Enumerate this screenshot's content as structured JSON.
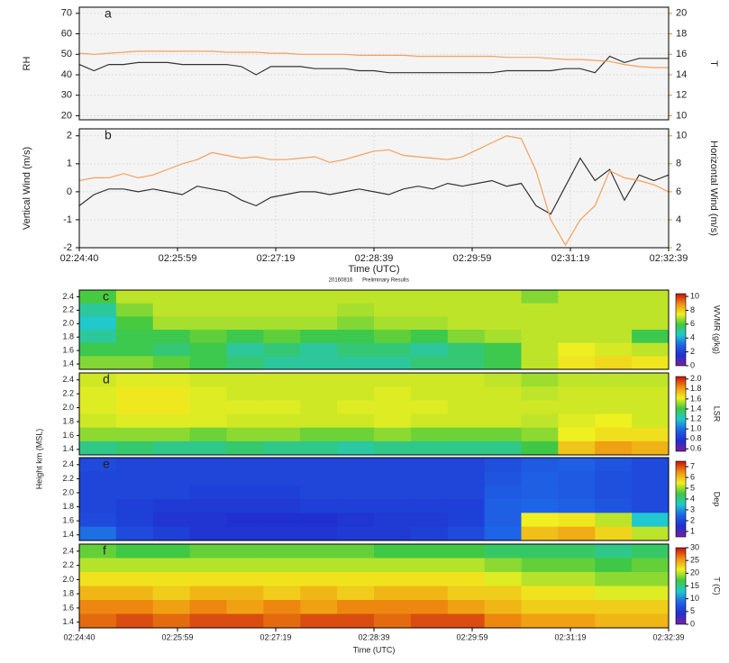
{
  "chart_data": [
    {
      "type": "line",
      "label": "a",
      "ylabel": "RH",
      "y2label": "T",
      "ylim": [
        18,
        73
      ],
      "yticks": [
        20,
        30,
        40,
        50,
        60,
        70
      ],
      "y2lim": [
        9.6,
        20.6
      ],
      "y2ticks": [
        10,
        12,
        14,
        16,
        18,
        20
      ],
      "y2color": "#f08c28",
      "series": [
        {
          "color": "#333333",
          "values": [
            45,
            42,
            45,
            45,
            46,
            46,
            46,
            45,
            45,
            45,
            45,
            44,
            40,
            44,
            44,
            44,
            43,
            43,
            43,
            42,
            42,
            41,
            41,
            41,
            41,
            41,
            41,
            41,
            41,
            42,
            42,
            42,
            42,
            43,
            43,
            41,
            49,
            46,
            48,
            48,
            48
          ]
        },
        {
          "color": "#f4a05a",
          "axis": "y2",
          "values": [
            16.1,
            16.0,
            16.1,
            16.2,
            16.3,
            16.3,
            16.3,
            16.3,
            16.3,
            16.3,
            16.2,
            16.2,
            16.2,
            16.1,
            16.1,
            16.0,
            16.0,
            16.0,
            16.0,
            15.9,
            15.9,
            15.9,
            15.9,
            15.8,
            15.8,
            15.8,
            15.8,
            15.8,
            15.8,
            15.7,
            15.7,
            15.7,
            15.6,
            15.5,
            15.5,
            15.4,
            15.3,
            15.0,
            14.8,
            14.7,
            14.7
          ]
        }
      ]
    },
    {
      "type": "line",
      "label": "b",
      "ylabel": "Vertical Wind (m/s)",
      "y2label": "Horizontal Wind (m/s)",
      "ylim": [
        -2,
        2.25
      ],
      "yticks": [
        -2,
        -1,
        0,
        1,
        2
      ],
      "y2lim": [
        2,
        10.5
      ],
      "y2ticks": [
        2,
        4,
        6,
        8,
        10
      ],
      "y2color": "#f08c28",
      "xticks": [
        "02:24:40",
        "02:25:59",
        "02:27:19",
        "02:28:39",
        "02:29:59",
        "02:31:19",
        "02:32:39"
      ],
      "xlabel": "Time (UTC)",
      "annotations": [
        "20160816",
        "Preliminary Results"
      ],
      "series": [
        {
          "color": "#333333",
          "values": [
            -0.5,
            -0.1,
            0.1,
            0.1,
            0.0,
            0.1,
            0.0,
            -0.1,
            0.2,
            0.1,
            0.0,
            -0.3,
            -0.5,
            -0.2,
            -0.1,
            0.0,
            0.0,
            -0.1,
            0.0,
            0.1,
            0.0,
            -0.1,
            0.1,
            0.2,
            0.1,
            0.3,
            0.2,
            0.3,
            0.4,
            0.2,
            0.3,
            -0.5,
            -0.8,
            0.2,
            1.2,
            0.4,
            0.8,
            -0.3,
            0.6,
            0.4,
            0.6
          ]
        },
        {
          "color": "#f4a05a",
          "axis": "y2",
          "values": [
            6.8,
            7.0,
            7.0,
            7.3,
            7.0,
            7.2,
            7.6,
            8.0,
            8.3,
            8.8,
            8.6,
            8.4,
            8.5,
            8.3,
            8.3,
            8.4,
            8.5,
            8.1,
            8.3,
            8.6,
            8.9,
            9.0,
            8.6,
            8.5,
            8.4,
            8.3,
            8.5,
            9.0,
            9.5,
            10.0,
            9.8,
            7.5,
            4.0,
            2.2,
            4.0,
            5.0,
            7.5,
            7.0,
            6.8,
            6.5,
            6.0
          ]
        }
      ]
    },
    {
      "type": "heatmap",
      "label": "c",
      "ylim": [
        1.32,
        2.5
      ],
      "yticks": [
        1.4,
        1.6,
        1.8,
        {
          "value": 2,
          "label": "2.0"
        },
        2.2,
        2.4
      ],
      "clim": [
        0,
        10.4
      ],
      "cticks": [
        0,
        2,
        4,
        6,
        8,
        10
      ],
      "clabel": "WVMR (g/kg)",
      "colormap": [
        "#7a1fa0",
        "#2030d0",
        "#1e64e6",
        "#20c8d0",
        "#40c840",
        "#f0f020",
        "#f09010",
        "#c81010"
      ],
      "z": [
        [
          6,
          7,
          7,
          7,
          7,
          7,
          7,
          7,
          7,
          7,
          7,
          7,
          6.5,
          7,
          7,
          7
        ],
        [
          5,
          6.5,
          7,
          7,
          7,
          7,
          7,
          6.8,
          7,
          7,
          7,
          7,
          7,
          7,
          7,
          7
        ],
        [
          4.5,
          6,
          6.8,
          6.8,
          6.8,
          6.8,
          6.8,
          6.5,
          6.8,
          6.8,
          7,
          7,
          7,
          7,
          7,
          7
        ],
        [
          5,
          5.8,
          5.8,
          6.2,
          5.8,
          6.2,
          5.8,
          5.8,
          6.2,
          5.8,
          6.5,
          6.8,
          7,
          7,
          7,
          5.8
        ],
        [
          5.8,
          5.8,
          5.4,
          5.8,
          5,
          5.4,
          5,
          5.4,
          5.4,
          5,
          5.4,
          5.8,
          7,
          7.4,
          7.2,
          7
        ],
        [
          6.5,
          6.5,
          6.2,
          5.8,
          5.4,
          5,
          5,
          5,
          5,
          5.4,
          5.4,
          5.8,
          7,
          7.6,
          7.8,
          7.6
        ]
      ]
    },
    {
      "type": "heatmap",
      "label": "d",
      "ylim": [
        1.32,
        2.5
      ],
      "yticks": [
        1.4,
        1.6,
        1.8,
        {
          "value": 2,
          "label": "2.0"
        },
        2.2,
        2.4
      ],
      "clim": [
        0.55,
        2.05
      ],
      "cticks": [
        0.6,
        0.8,
        {
          "value": 1,
          "label": "1.0"
        },
        1.2,
        1.4,
        1.6,
        1.8,
        {
          "value": 2,
          "label": "2.0"
        }
      ],
      "clabel": "LSR",
      "colormap": [
        "#7a1fa0",
        "#2030d0",
        "#1e64e6",
        "#20c8d0",
        "#40c840",
        "#f0f020",
        "#f09010",
        "#c81010"
      ],
      "z": [
        [
          1.58,
          1.6,
          1.6,
          1.58,
          1.58,
          1.58,
          1.58,
          1.58,
          1.58,
          1.58,
          1.58,
          1.56,
          1.52,
          1.56,
          1.56,
          1.56
        ],
        [
          1.6,
          1.64,
          1.64,
          1.6,
          1.58,
          1.58,
          1.58,
          1.58,
          1.6,
          1.58,
          1.58,
          1.58,
          1.56,
          1.58,
          1.58,
          1.58
        ],
        [
          1.6,
          1.64,
          1.64,
          1.6,
          1.6,
          1.6,
          1.58,
          1.6,
          1.6,
          1.6,
          1.58,
          1.58,
          1.58,
          1.58,
          1.58,
          1.58
        ],
        [
          1.58,
          1.6,
          1.6,
          1.6,
          1.58,
          1.58,
          1.58,
          1.58,
          1.6,
          1.58,
          1.58,
          1.58,
          1.56,
          1.6,
          1.62,
          1.58
        ],
        [
          1.5,
          1.5,
          1.5,
          1.46,
          1.5,
          1.5,
          1.46,
          1.46,
          1.5,
          1.46,
          1.46,
          1.46,
          1.5,
          1.62,
          1.66,
          1.66
        ],
        [
          1.3,
          1.34,
          1.3,
          1.3,
          1.34,
          1.3,
          1.3,
          1.26,
          1.3,
          1.3,
          1.3,
          1.3,
          1.4,
          1.72,
          1.8,
          1.76
        ]
      ]
    },
    {
      "type": "heatmap",
      "label": "e",
      "ylabel": "Height km (MSL)",
      "ylim": [
        1.32,
        2.5
      ],
      "yticks": [
        1.4,
        1.6,
        1.8,
        {
          "value": 2,
          "label": "2.0"
        },
        2.2,
        2.4
      ],
      "clim": [
        0.5,
        7.5
      ],
      "cticks": [
        1,
        2,
        3,
        4,
        5,
        6,
        7
      ],
      "clabel": "Dep",
      "colormap": [
        "#7a1fa0",
        "#2030d0",
        "#1e64e6",
        "#20c8d0",
        "#40c840",
        "#f0f020",
        "#f09010",
        "#c81010"
      ],
      "z": [
        [
          2,
          1.9,
          1.9,
          1.9,
          1.9,
          1.9,
          1.9,
          1.9,
          1.9,
          1.9,
          1.9,
          2.1,
          2.3,
          2.4,
          2.2,
          2
        ],
        [
          1.9,
          1.9,
          1.9,
          1.9,
          1.9,
          1.9,
          1.9,
          1.9,
          1.9,
          1.9,
          1.9,
          2.2,
          2.4,
          2.3,
          2.1,
          2
        ],
        [
          1.9,
          1.9,
          1.9,
          1.8,
          1.8,
          1.8,
          1.9,
          1.9,
          1.9,
          1.9,
          1.9,
          2.3,
          2.4,
          2.3,
          2.1,
          2
        ],
        [
          1.9,
          1.8,
          1.7,
          1.7,
          1.7,
          1.7,
          1.8,
          1.8,
          1.8,
          1.8,
          1.8,
          2.4,
          2.5,
          2.4,
          2.2,
          2
        ],
        [
          2,
          1.8,
          1.6,
          1.6,
          1.5,
          1.5,
          1.5,
          1.6,
          1.7,
          1.7,
          1.8,
          2.4,
          5.5,
          5.6,
          5.2,
          3.5
        ],
        [
          2.6,
          2,
          1.8,
          1.6,
          1.6,
          1.6,
          1.6,
          1.7,
          1.7,
          1.8,
          2,
          2.5,
          6,
          6.2,
          5.8,
          5.2
        ]
      ]
    },
    {
      "type": "heatmap",
      "label": "f",
      "ylim": [
        1.32,
        2.5
      ],
      "yticks": [
        1.4,
        1.6,
        1.8,
        {
          "value": 2,
          "label": "2.0"
        },
        2.2,
        2.4
      ],
      "clim": [
        0,
        30
      ],
      "cticks": [
        0,
        5,
        10,
        15,
        20,
        25,
        30
      ],
      "clabel": "T (C)",
      "colormap": [
        "#7a1fa0",
        "#2030d0",
        "#1e64e6",
        "#20c8d0",
        "#40c840",
        "#f0f020",
        "#f09010",
        "#c81010"
      ],
      "xticks": [
        "02:24:40",
        "02:25:59",
        "02:27:19",
        "02:28:39",
        "02:29:59",
        "02:31:19",
        "02:32:39"
      ],
      "xlabel": "Time (UTC)",
      "z": [
        [
          18,
          17,
          17,
          18,
          18,
          18,
          18,
          18,
          17,
          17,
          17,
          16,
          16,
          16,
          15,
          16
        ],
        [
          20,
          20,
          20,
          20,
          20,
          20,
          20,
          20,
          20,
          20,
          20,
          19,
          18,
          18,
          17,
          18
        ],
        [
          22,
          22,
          22,
          22,
          22,
          22,
          22,
          22,
          22,
          22,
          22,
          21,
          20,
          20,
          19,
          19
        ],
        [
          24,
          24,
          23,
          24,
          24,
          23,
          24,
          23,
          24,
          24,
          23,
          23,
          22,
          22,
          21,
          21
        ],
        [
          26,
          26,
          25,
          26,
          25,
          26,
          25,
          26,
          26,
          26,
          25,
          24,
          23,
          23,
          23,
          23
        ],
        [
          27,
          28,
          27,
          28,
          28,
          27,
          28,
          28,
          27,
          28,
          28,
          26,
          25,
          25,
          24,
          24
        ]
      ]
    }
  ]
}
